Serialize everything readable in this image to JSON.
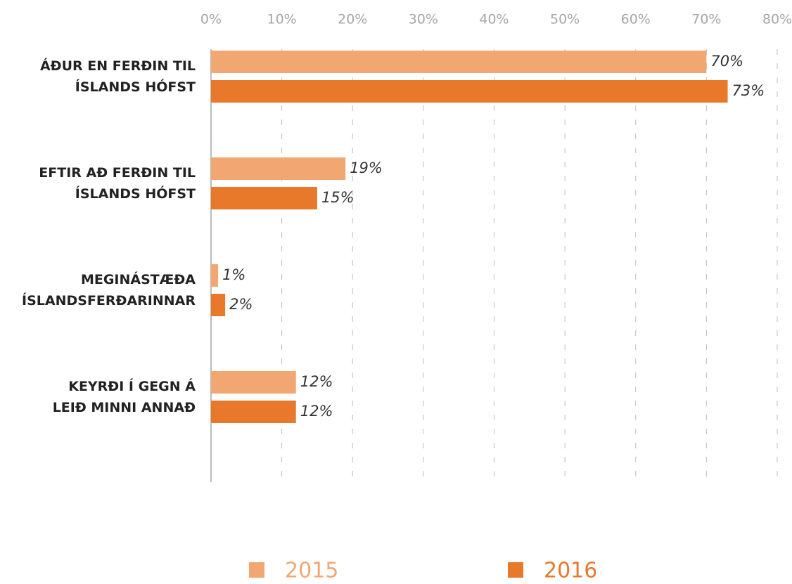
{
  "chart_data": {
    "type": "bar",
    "orientation": "horizontal",
    "categories": [
      "ÁÐUR EN FERÐIN TIL\nÍSLANDS HÓFST",
      "EFTIR AÐ FERÐIN TIL\nÍSLANDS HÓFST",
      "MEGINÁSTÆÐA\nÍSLANDSFERÐARINNAR",
      "KEYRÐI Í GEGN Á\nLEIÐ MINNI ANNAÐ"
    ],
    "series": [
      {
        "name": "2015",
        "color": "#f2a772",
        "values": [
          70,
          19,
          1,
          12
        ],
        "value_labels": [
          "70%",
          "19%",
          "1%",
          "12%"
        ]
      },
      {
        "name": "2016",
        "color": "#e8782a",
        "values": [
          73,
          15,
          2,
          12
        ],
        "value_labels": [
          "73%",
          "15%",
          "2%",
          "12%"
        ]
      }
    ],
    "xlim": [
      0,
      80
    ],
    "xticks": [
      {
        "value": 0,
        "label": "0%"
      },
      {
        "value": 10,
        "label": "10%"
      },
      {
        "value": 20,
        "label": "20%"
      },
      {
        "value": 30,
        "label": "30%"
      },
      {
        "value": 40,
        "label": "40%"
      },
      {
        "value": 50,
        "label": "50%"
      },
      {
        "value": 60,
        "label": "60%"
      },
      {
        "value": 70,
        "label": "70%"
      },
      {
        "value": 80,
        "label": "80%"
      }
    ],
    "grid": true,
    "legend": "bottom"
  }
}
